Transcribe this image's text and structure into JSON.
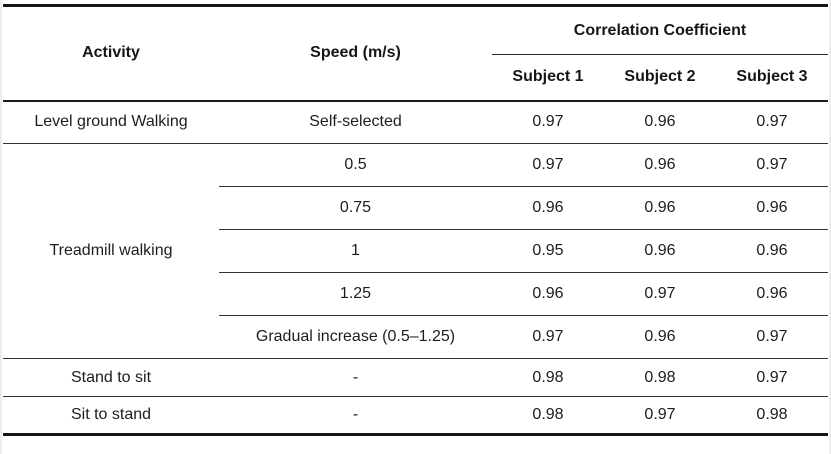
{
  "table": {
    "header": {
      "activity": "Activity",
      "speed": "Speed (m/s)",
      "correlation": "Correlation Coefficient",
      "subjects": [
        "Subject 1",
        "Subject 2",
        "Subject 3"
      ]
    },
    "rows": [
      {
        "activity": "Level ground Walking",
        "speed": "Self-selected",
        "subject1": "0.97",
        "subject2": "0.96",
        "subject3": "0.97"
      },
      {
        "activity": "Treadmill walking",
        "speed": "0.5",
        "subject1": "0.97",
        "subject2": "0.96",
        "subject3": "0.97"
      },
      {
        "speed": "0.75",
        "subject1": "0.96",
        "subject2": "0.96",
        "subject3": "0.96"
      },
      {
        "speed": "1",
        "subject1": "0.95",
        "subject2": "0.96",
        "subject3": "0.96"
      },
      {
        "speed": "1.25",
        "subject1": "0.96",
        "subject2": "0.97",
        "subject3": "0.96"
      },
      {
        "speed": "Gradual increase (0.5–1.25)",
        "subject1": "0.97",
        "subject2": "0.96",
        "subject3": "0.97"
      },
      {
        "activity": "Stand to sit",
        "speed": "-",
        "subject1": "0.98",
        "subject2": "0.98",
        "subject3": "0.97"
      },
      {
        "activity": "Sit to stand",
        "speed": "-",
        "subject1": "0.98",
        "subject2": "0.97",
        "subject3": "0.98"
      }
    ]
  },
  "chart_data": {
    "type": "table",
    "columns": [
      "Activity",
      "Speed (m/s)",
      "Subject 1",
      "Subject 2",
      "Subject 3"
    ],
    "column_group": {
      "label": "Correlation Coefficient",
      "spans": [
        "Subject 1",
        "Subject 2",
        "Subject 3"
      ]
    },
    "rows": [
      [
        "Level ground Walking",
        "Self-selected",
        0.97,
        0.96,
        0.97
      ],
      [
        "Treadmill walking",
        "0.5",
        0.97,
        0.96,
        0.97
      ],
      [
        "Treadmill walking",
        "0.75",
        0.96,
        0.96,
        0.96
      ],
      [
        "Treadmill walking",
        "1",
        0.95,
        0.96,
        0.96
      ],
      [
        "Treadmill walking",
        "1.25",
        0.96,
        0.97,
        0.96
      ],
      [
        "Treadmill walking",
        "Gradual increase (0.5–1.25)",
        0.97,
        0.96,
        0.97
      ],
      [
        "Stand to sit",
        "-",
        0.98,
        0.98,
        0.97
      ],
      [
        "Sit to stand",
        "-",
        0.98,
        0.97,
        0.98
      ]
    ]
  }
}
